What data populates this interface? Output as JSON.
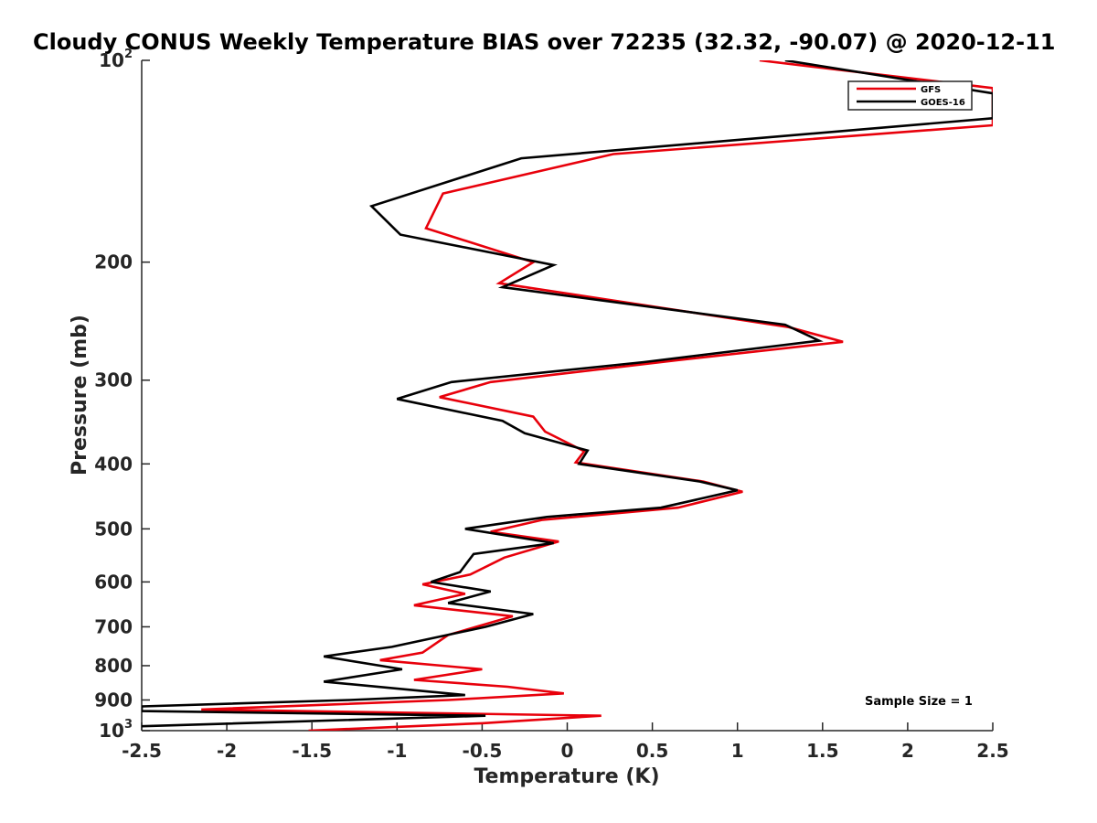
{
  "chart_data": {
    "type": "line",
    "title": "Cloudy CONUS Weekly Temperature BIAS over 72235 (32.32, -90.07) @ 2020-12-11",
    "xlabel": "Temperature (K)",
    "ylabel": "Pressure (mb)",
    "xlim": [
      -2.5,
      2.5
    ],
    "ylim": [
      100,
      1000
    ],
    "y_scale": "log",
    "y_reversed": true,
    "grid": false,
    "legend_position": "top-right",
    "x_ticks": [
      "-2.5",
      "-2",
      "-1.5",
      "-1",
      "-0.5",
      "0",
      "0.5",
      "1",
      "1.5",
      "2",
      "2.5"
    ],
    "y_ticks": [
      {
        "value": 100,
        "base": "10",
        "exp": "2"
      },
      {
        "value": 200,
        "label": "200"
      },
      {
        "value": 300,
        "label": "300"
      },
      {
        "value": 400,
        "label": "400"
      },
      {
        "value": 500,
        "label": "500"
      },
      {
        "value": 600,
        "label": "600"
      },
      {
        "value": 700,
        "label": "700"
      },
      {
        "value": 800,
        "label": "800"
      },
      {
        "value": 900,
        "label": "900"
      },
      {
        "value": 1000,
        "base": "10",
        "exp": "3"
      }
    ],
    "annotation": "Sample Size = 1",
    "series": [
      {
        "name": "GFS",
        "color": "#e8000b",
        "points": [
          [
            1.13,
            100
          ],
          [
            2.5,
            110
          ],
          [
            2.5,
            125
          ],
          [
            0.27,
            138
          ],
          [
            -0.73,
            158
          ],
          [
            -0.83,
            178
          ],
          [
            -0.2,
            200
          ],
          [
            -0.4,
            215
          ],
          [
            1.3,
            250
          ],
          [
            1.62,
            263
          ],
          [
            0.65,
            280
          ],
          [
            -0.45,
            302
          ],
          [
            -0.75,
            318
          ],
          [
            -0.2,
            340
          ],
          [
            -0.13,
            358
          ],
          [
            0.1,
            383
          ],
          [
            0.05,
            398
          ],
          [
            0.8,
            425
          ],
          [
            1.03,
            440
          ],
          [
            0.65,
            465
          ],
          [
            -0.15,
            485
          ],
          [
            -0.45,
            505
          ],
          [
            -0.05,
            522
          ],
          [
            -0.37,
            552
          ],
          [
            -0.57,
            585
          ],
          [
            -0.85,
            605
          ],
          [
            -0.6,
            625
          ],
          [
            -0.9,
            650
          ],
          [
            -0.32,
            675
          ],
          [
            -0.7,
            720
          ],
          [
            -0.85,
            765
          ],
          [
            -1.1,
            785
          ],
          [
            -0.5,
            810
          ],
          [
            -0.9,
            840
          ],
          [
            -0.35,
            860
          ],
          [
            -0.02,
            880
          ],
          [
            -0.7,
            900
          ],
          [
            -2.15,
            930
          ],
          [
            0.2,
            950
          ],
          [
            -0.5,
            975
          ],
          [
            -1.52,
            1000
          ]
        ]
      },
      {
        "name": "GOES-16",
        "color": "#000000",
        "points": [
          [
            1.28,
            100
          ],
          [
            2.5,
            112
          ],
          [
            2.5,
            122
          ],
          [
            -0.27,
            140
          ],
          [
            -1.15,
            165
          ],
          [
            -0.98,
            182
          ],
          [
            -0.08,
            202
          ],
          [
            -0.38,
            218
          ],
          [
            1.28,
            248
          ],
          [
            1.48,
            262
          ],
          [
            0.45,
            282
          ],
          [
            -0.68,
            302
          ],
          [
            -1.0,
            320
          ],
          [
            -0.38,
            345
          ],
          [
            -0.25,
            360
          ],
          [
            0.12,
            382
          ],
          [
            0.07,
            400
          ],
          [
            0.78,
            425
          ],
          [
            1.0,
            438
          ],
          [
            0.55,
            465
          ],
          [
            -0.12,
            480
          ],
          [
            -0.6,
            500
          ],
          [
            -0.08,
            525
          ],
          [
            -0.55,
            545
          ],
          [
            -0.63,
            580
          ],
          [
            -0.8,
            600
          ],
          [
            -0.45,
            620
          ],
          [
            -0.7,
            645
          ],
          [
            -0.2,
            670
          ],
          [
            -0.48,
            700
          ],
          [
            -1.03,
            750
          ],
          [
            -1.43,
            775
          ],
          [
            -0.97,
            810
          ],
          [
            -1.43,
            845
          ],
          [
            -0.6,
            885
          ],
          [
            -1.28,
            900
          ],
          [
            -2.5,
            920
          ],
          [
            -2.5,
            935
          ],
          [
            -0.48,
            950
          ],
          [
            -2.5,
            985
          ]
        ]
      }
    ]
  }
}
